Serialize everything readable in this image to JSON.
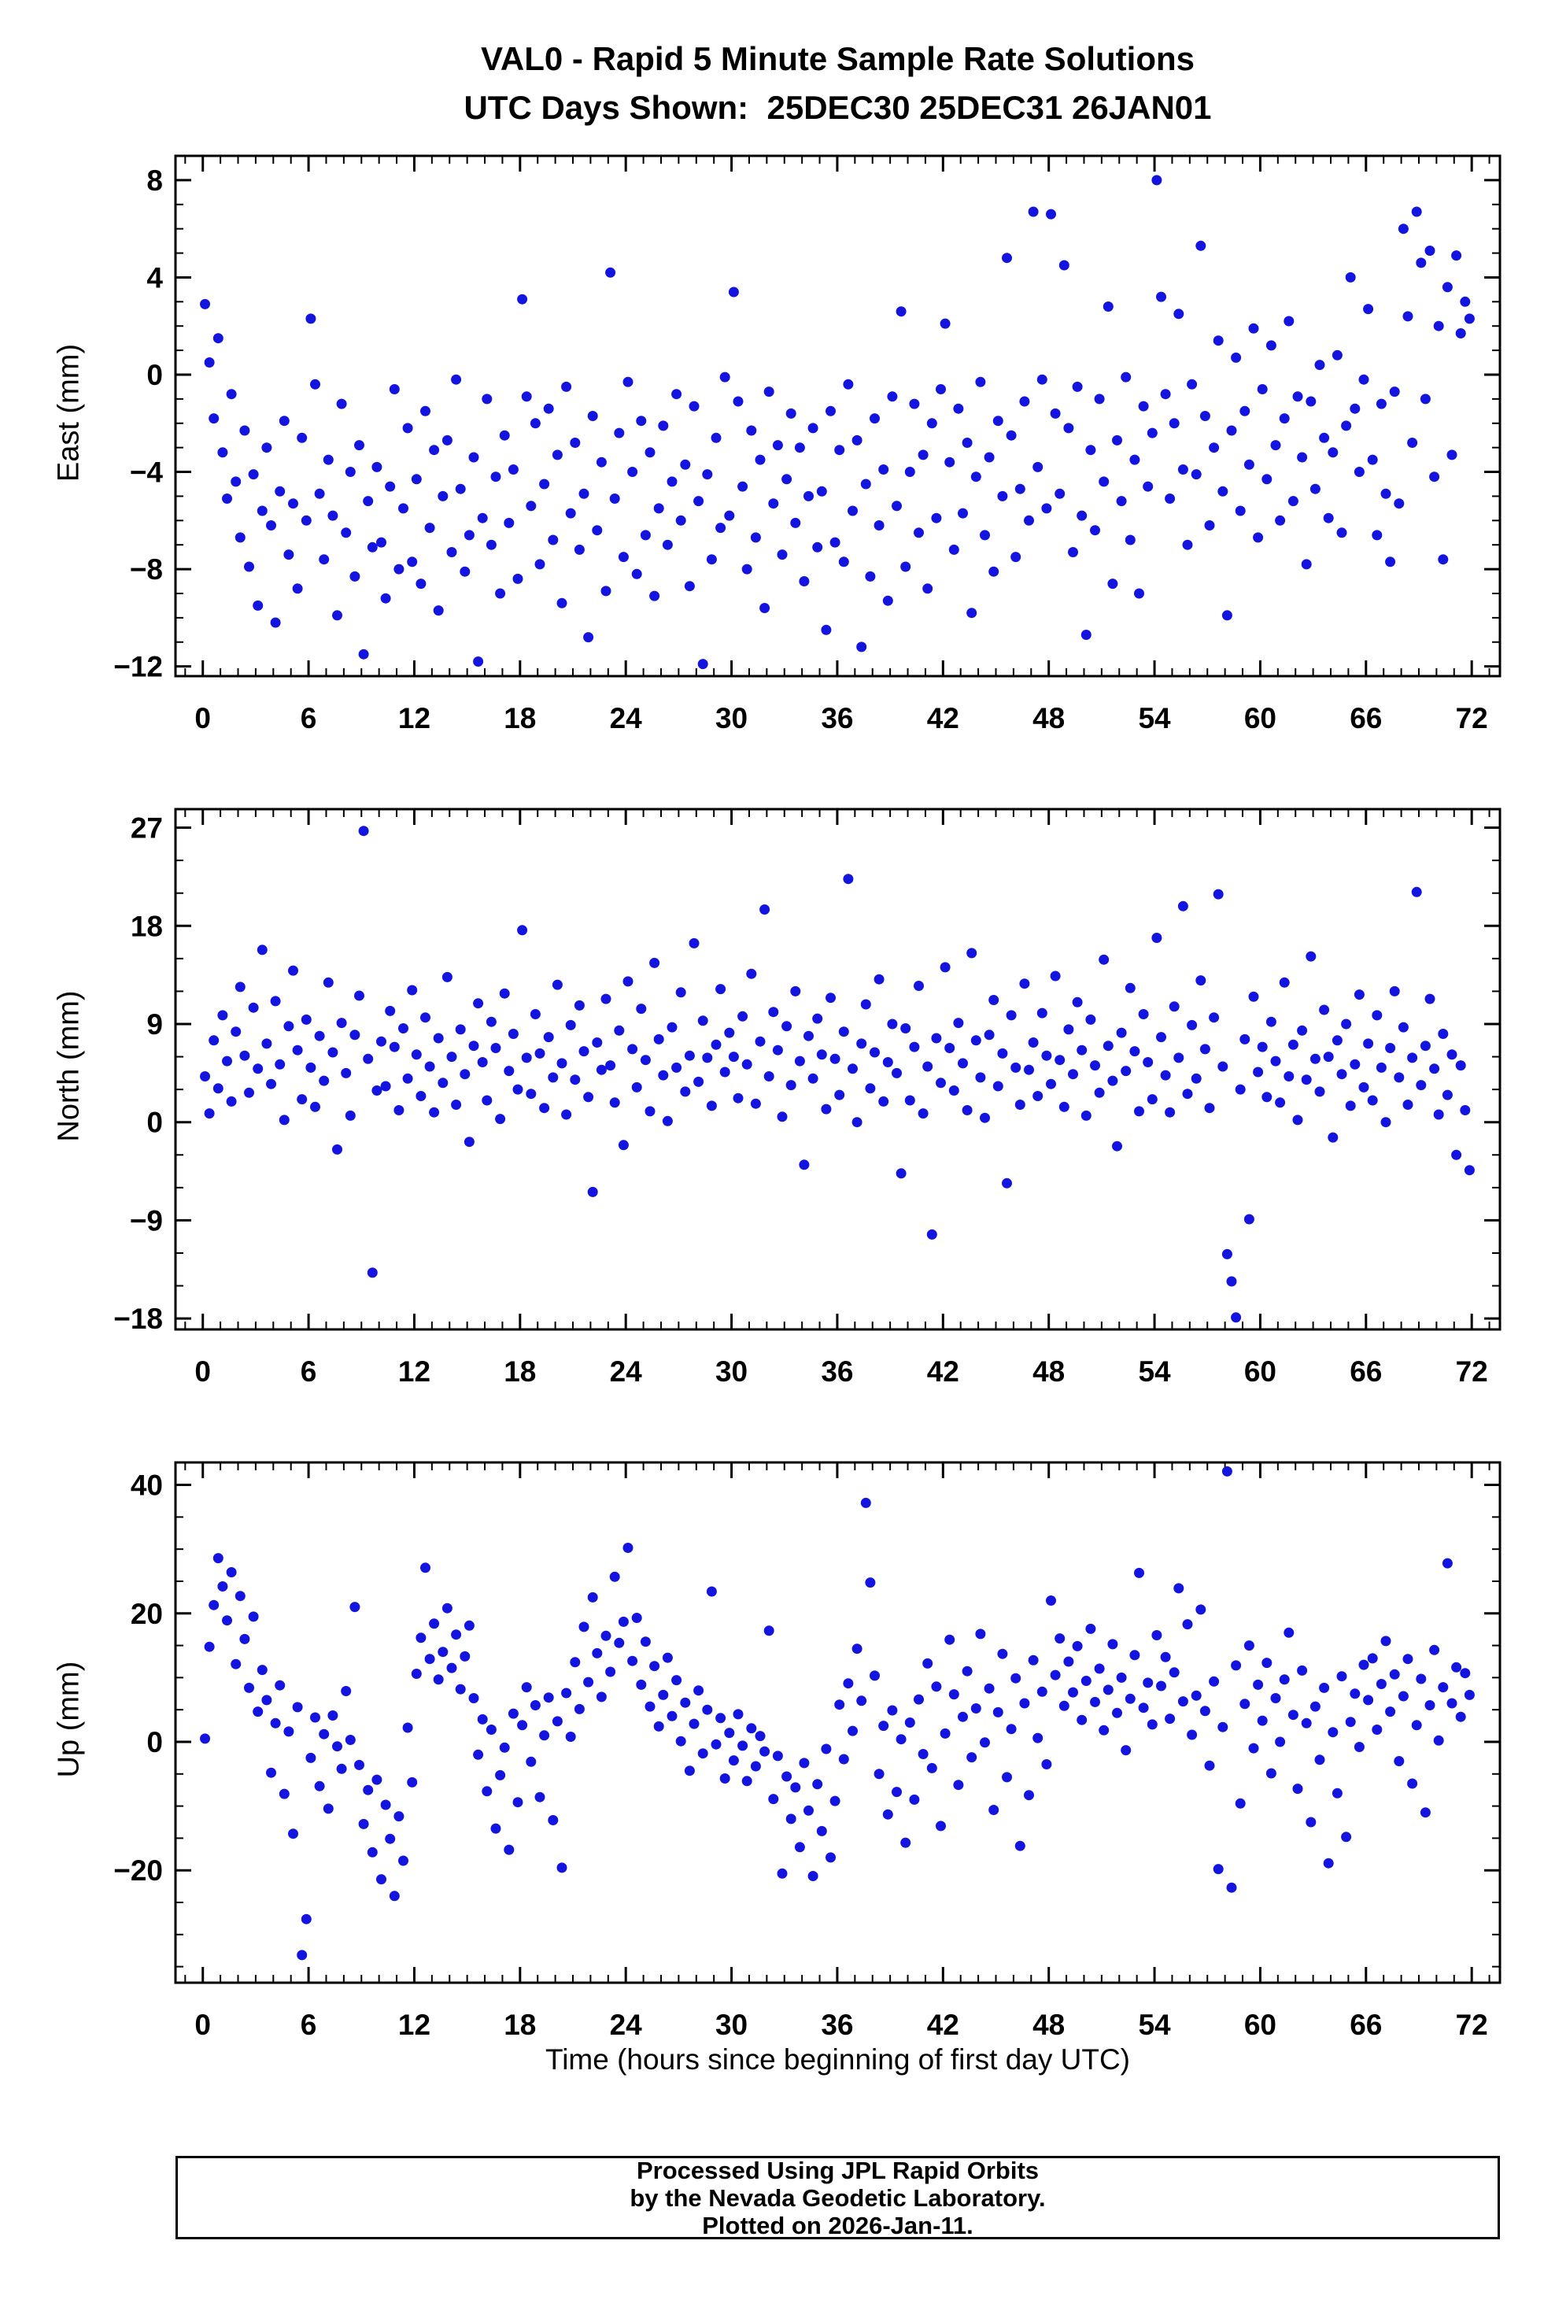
{
  "title": {
    "line1": "VAL0 - Rapid 5 Minute Sample Rate Solutions",
    "line2": "UTC Days Shown:  25DEC30 25DEC31 26JAN01"
  },
  "xlabel": "Time (hours since beginning of first day UTC)",
  "footer": {
    "line1": "Processed Using JPL Rapid Orbits",
    "line2": "by the Nevada Geodetic Laboratory.",
    "line3": "Plotted on 2026-Jan-11."
  },
  "point_color": "#1414e0",
  "chart_data": [
    {
      "type": "scatter",
      "name": "East",
      "ylabel": "East (mm)",
      "ylim": [
        -12.4,
        9.0
      ],
      "yticks": [
        8,
        4,
        0,
        -4,
        -8,
        -12
      ],
      "y_minor_step": 1,
      "xlim": [
        -1.55,
        73.6
      ],
      "xticks": [
        0,
        6,
        12,
        18,
        24,
        30,
        36,
        42,
        48,
        54,
        60,
        66,
        72
      ],
      "x_minor_step": 1,
      "x_start": 0.125,
      "x_step": 0.25,
      "y": [
        2.9,
        0.5,
        -1.8,
        1.5,
        -3.2,
        -5.1,
        -0.8,
        -4.4,
        -6.7,
        -2.3,
        -7.9,
        -4.1,
        -9.5,
        -5.6,
        -3.0,
        -6.2,
        -10.2,
        -4.8,
        -1.9,
        -7.4,
        -5.3,
        -8.8,
        -2.6,
        -6.0,
        2.3,
        -0.4,
        -4.9,
        -7.6,
        -3.5,
        -5.8,
        -9.9,
        -1.2,
        -6.5,
        -4.0,
        -8.3,
        -2.9,
        -11.5,
        -5.2,
        -7.1,
        -3.8,
        -6.9,
        -9.2,
        -4.6,
        -0.6,
        -8.0,
        -5.5,
        -2.2,
        -7.7,
        -4.3,
        -8.6,
        -1.5,
        -6.3,
        -3.1,
        -9.7,
        -5.0,
        -2.7,
        -7.3,
        -0.2,
        -4.7,
        -8.1,
        -6.6,
        -3.4,
        -11.8,
        -5.9,
        -1.0,
        -7.0,
        -4.2,
        -9.0,
        -2.5,
        -6.1,
        -3.9,
        -8.4,
        3.1,
        -0.9,
        -5.4,
        -2.0,
        -7.8,
        -4.5,
        -1.4,
        -6.8,
        -3.3,
        -9.4,
        -0.5,
        -5.7,
        -2.8,
        -7.2,
        -4.9,
        -10.8,
        -1.7,
        -6.4,
        -3.6,
        -8.9,
        4.2,
        -5.1,
        -2.4,
        -7.5,
        -0.3,
        -4.0,
        -8.2,
        -1.9,
        -6.6,
        -3.2,
        -9.1,
        -5.5,
        -2.1,
        -7.0,
        -4.4,
        -0.8,
        -6.0,
        -3.7,
        -8.7,
        -1.3,
        -5.2,
        -11.9,
        -4.1,
        -7.6,
        -2.6,
        -6.3,
        -0.1,
        -5.8,
        3.4,
        -1.1,
        -4.6,
        -8.0,
        -2.3,
        -6.7,
        -3.5,
        -9.6,
        -0.7,
        -5.3,
        -2.9,
        -7.4,
        -4.3,
        -1.6,
        -6.1,
        -3.0,
        -8.5,
        -5.0,
        -2.2,
        -7.1,
        -4.8,
        -10.5,
        -1.5,
        -6.9,
        -3.1,
        -7.7,
        -0.4,
        -5.6,
        -2.7,
        -11.2,
        -4.5,
        -8.3,
        -1.8,
        -6.2,
        -3.9,
        -9.3,
        -0.9,
        -5.4,
        2.6,
        -7.9,
        -4.0,
        -1.2,
        -6.5,
        -3.3,
        -8.8,
        -2.0,
        -5.9,
        -0.6,
        2.1,
        -3.6,
        -7.2,
        -1.4,
        -5.7,
        -2.8,
        -9.8,
        -4.2,
        -0.3,
        -6.6,
        -3.4,
        -8.1,
        -1.9,
        -5.0,
        4.8,
        -2.5,
        -7.5,
        -4.7,
        -1.1,
        -6.0,
        6.7,
        -3.8,
        -0.2,
        -5.5,
        6.6,
        -1.6,
        -4.9,
        4.5,
        -2.2,
        -7.3,
        -0.5,
        -5.8,
        -10.7,
        -3.1,
        -6.4,
        -1.0,
        -4.4,
        2.8,
        -8.6,
        -2.7,
        -5.2,
        -0.1,
        -6.8,
        -3.5,
        -9.0,
        -1.3,
        -4.6,
        -2.4,
        8.0,
        3.2,
        -0.8,
        -5.1,
        -2.0,
        2.5,
        -3.9,
        -7.0,
        -0.4,
        -4.1,
        5.3,
        -1.7,
        -6.2,
        -3.0,
        1.4,
        -4.8,
        -9.9,
        -2.3,
        0.7,
        -5.6,
        -1.5,
        -3.7,
        1.9,
        -6.7,
        -0.6,
        -4.3,
        1.2,
        -2.9,
        -6.0,
        -1.8,
        2.2,
        -5.2,
        -0.9,
        -3.4,
        -7.8,
        -1.1,
        -4.7,
        0.4,
        -2.6,
        -5.9,
        -3.2,
        0.8,
        -6.5,
        -2.1,
        4.0,
        -1.4,
        -4.0,
        -0.2,
        2.7,
        -3.5,
        -6.6,
        -1.2,
        -4.9,
        -7.7,
        -0.7,
        -5.3,
        6.0,
        2.4,
        -2.8,
        6.7,
        4.6,
        -1.0,
        5.1,
        -4.2,
        2.0,
        -7.6,
        3.6,
        -3.3,
        4.9,
        1.7,
        3.0,
        2.3
      ]
    },
    {
      "type": "scatter",
      "name": "North",
      "ylabel": "North (mm)",
      "ylim": [
        -19.0,
        28.7
      ],
      "yticks": [
        27,
        18,
        9,
        0,
        -9,
        -18
      ],
      "y_minor_step": 3,
      "xlim": [
        -1.55,
        73.6
      ],
      "xticks": [
        0,
        6,
        12,
        18,
        24,
        30,
        36,
        42,
        48,
        54,
        60,
        66,
        72
      ],
      "x_minor_step": 1,
      "x_start": 0.125,
      "x_step": 0.25,
      "y": [
        4.2,
        0.8,
        7.5,
        3.1,
        9.8,
        5.6,
        1.9,
        8.3,
        12.4,
        6.1,
        2.7,
        10.5,
        4.9,
        15.8,
        7.2,
        3.5,
        11.1,
        5.3,
        0.2,
        8.8,
        13.9,
        6.6,
        2.1,
        9.4,
        5.0,
        1.4,
        7.9,
        3.8,
        12.8,
        6.4,
        -2.5,
        9.1,
        4.5,
        0.6,
        8.0,
        11.6,
        26.7,
        5.8,
        -13.8,
        2.9,
        7.4,
        3.3,
        10.2,
        6.9,
        1.1,
        8.6,
        4.0,
        12.1,
        6.2,
        2.4,
        9.6,
        5.1,
        0.9,
        7.7,
        3.6,
        13.3,
        6.0,
        1.6,
        8.5,
        4.4,
        -1.8,
        7.0,
        10.9,
        5.5,
        2.0,
        9.2,
        6.8,
        0.3,
        11.8,
        4.7,
        8.1,
        3.0,
        17.6,
        5.9,
        2.6,
        9.9,
        6.3,
        1.3,
        7.8,
        4.1,
        12.6,
        5.4,
        0.7,
        8.9,
        3.9,
        10.7,
        6.5,
        2.3,
        -6.4,
        7.3,
        4.8,
        11.3,
        5.2,
        1.8,
        8.4,
        -2.1,
        12.9,
        6.7,
        3.2,
        10.4,
        5.7,
        1.0,
        14.6,
        7.6,
        4.3,
        0.1,
        8.7,
        5.0,
        11.9,
        2.8,
        6.1,
        16.4,
        3.7,
        9.3,
        5.9,
        1.5,
        7.1,
        12.2,
        4.6,
        8.2,
        6.0,
        2.2,
        9.7,
        5.3,
        13.6,
        1.7,
        7.4,
        19.5,
        4.2,
        10.1,
        6.6,
        0.5,
        8.8,
        3.4,
        12.0,
        5.6,
        -3.9,
        7.9,
        4.0,
        9.5,
        6.2,
        1.2,
        11.4,
        5.8,
        2.5,
        8.3,
        22.3,
        4.9,
        0.0,
        7.2,
        10.8,
        3.1,
        6.4,
        13.1,
        1.9,
        5.5,
        9.0,
        4.5,
        -4.7,
        8.6,
        2.0,
        6.9,
        12.5,
        0.8,
        5.1,
        -10.3,
        7.7,
        3.6,
        14.2,
        6.8,
        2.9,
        9.1,
        5.4,
        1.1,
        15.5,
        7.5,
        4.1,
        0.4,
        8.0,
        11.2,
        3.3,
        6.3,
        -5.6,
        9.8,
        5.0,
        1.6,
        12.7,
        4.8,
        7.3,
        2.4,
        10.0,
        6.1,
        3.5,
        13.4,
        5.7,
        1.4,
        8.5,
        4.4,
        11.0,
        6.6,
        0.6,
        9.4,
        5.2,
        2.7,
        14.9,
        7.0,
        3.8,
        -2.2,
        8.2,
        4.7,
        12.3,
        6.5,
        1.0,
        9.9,
        5.5,
        2.1,
        16.9,
        7.8,
        4.3,
        0.9,
        10.6,
        5.9,
        19.8,
        2.6,
        8.9,
        4.0,
        13.0,
        6.7,
        1.3,
        9.6,
        20.9,
        5.1,
        -12.1,
        -14.6,
        -17.9,
        3.0,
        7.6,
        -8.9,
        11.5,
        4.6,
        6.9,
        2.3,
        9.2,
        5.6,
        1.8,
        12.8,
        4.2,
        7.1,
        0.2,
        8.4,
        3.9,
        15.2,
        5.8,
        2.8,
        10.3,
        6.0,
        -1.4,
        7.5,
        4.4,
        9.0,
        1.5,
        5.3,
        11.7,
        3.2,
        7.2,
        2.0,
        9.8,
        5.0,
        0.0,
        6.8,
        12.0,
        4.1,
        8.7,
        1.6,
        5.9,
        21.1,
        3.4,
        7.0,
        11.3,
        4.9,
        0.7,
        8.1,
        2.5,
        6.2,
        -3.0,
        5.2,
        1.1,
        -4.4
      ]
    },
    {
      "type": "scatter",
      "name": "Up",
      "ylabel": "Up (mm)",
      "ylim": [
        -37.5,
        43.5
      ],
      "yticks": [
        40,
        20,
        0,
        -20
      ],
      "y_minor_step": 5,
      "xlim": [
        -1.55,
        73.6
      ],
      "xticks": [
        0,
        6,
        12,
        18,
        24,
        30,
        36,
        42,
        48,
        54,
        60,
        66,
        72
      ],
      "x_minor_step": 1,
      "x_start": 0.125,
      "x_step": 0.25,
      "y": [
        0.5,
        14.8,
        21.3,
        28.6,
        24.2,
        18.9,
        26.4,
        12.1,
        22.7,
        16.0,
        8.4,
        19.5,
        4.7,
        11.2,
        6.5,
        -4.8,
        2.9,
        8.8,
        -8.1,
        1.6,
        -14.3,
        5.4,
        -33.2,
        -27.6,
        -2.5,
        3.8,
        -6.9,
        1.2,
        -10.4,
        4.1,
        -0.7,
        -4.2,
        7.9,
        0.3,
        21.0,
        -3.6,
        -12.8,
        -7.5,
        -17.2,
        -5.9,
        -21.4,
        -9.8,
        -15.1,
        -24.0,
        -11.6,
        -18.5,
        2.2,
        -6.3,
        10.6,
        16.2,
        27.1,
        12.9,
        18.4,
        9.7,
        14.0,
        20.8,
        11.5,
        16.7,
        8.2,
        13.3,
        18.1,
        6.8,
        -2.0,
        3.5,
        -7.7,
        1.9,
        -13.5,
        -5.2,
        -0.9,
        -16.8,
        4.4,
        -9.4,
        2.6,
        8.5,
        -3.1,
        5.7,
        -8.6,
        1.0,
        6.9,
        -12.2,
        3.2,
        -19.6,
        7.6,
        0.8,
        12.4,
        5.1,
        17.9,
        9.3,
        22.5,
        13.8,
        7.0,
        16.5,
        10.9,
        25.7,
        15.4,
        18.7,
        30.2,
        12.6,
        19.3,
        8.9,
        15.6,
        5.5,
        11.8,
        2.4,
        7.3,
        13.1,
        4.0,
        9.6,
        0.1,
        6.1,
        -4.5,
        2.8,
        8.0,
        -1.8,
        5.0,
        23.4,
        -0.4,
        3.7,
        -5.7,
        1.4,
        -2.9,
        4.3,
        -0.6,
        -6.1,
        2.1,
        -3.8,
        0.9,
        -1.5,
        17.3,
        -8.9,
        -2.2,
        -20.5,
        -5.4,
        -12.0,
        -7.1,
        -16.4,
        -3.3,
        -10.7,
        -20.9,
        -6.6,
        -13.9,
        -1.1,
        -18.0,
        -9.2,
        5.8,
        -2.7,
        9.1,
        1.7,
        14.5,
        6.4,
        37.2,
        24.8,
        10.3,
        -5.0,
        2.5,
        -11.3,
        4.9,
        -7.8,
        0.4,
        -15.7,
        3.0,
        -9.0,
        6.6,
        -1.9,
        12.2,
        -4.1,
        8.6,
        -13.1,
        1.3,
        15.9,
        7.4,
        -6.7,
        3.9,
        11.0,
        -2.4,
        5.2,
        16.8,
        -0.1,
        8.3,
        -10.6,
        4.6,
        13.7,
        -5.5,
        2.0,
        9.9,
        -16.2,
        6.0,
        -8.3,
        12.7,
        0.6,
        7.8,
        -3.5,
        22.0,
        10.4,
        16.1,
        5.6,
        12.5,
        7.7,
        14.9,
        3.4,
        9.5,
        17.6,
        6.2,
        11.4,
        1.8,
        8.1,
        15.2,
        4.5,
        10.0,
        -1.3,
        6.7,
        13.5,
        26.3,
        5.3,
        9.2,
        2.7,
        16.6,
        8.7,
        13.2,
        3.6,
        10.8,
        23.9,
        6.3,
        18.3,
        1.1,
        7.2,
        20.6,
        4.8,
        -3.7,
        9.4,
        -19.8,
        2.3,
        42.1,
        -22.7,
        11.9,
        -9.6,
        5.9,
        15.0,
        -1.0,
        8.9,
        3.3,
        12.3,
        -4.9,
        6.8,
        0.0,
        9.7,
        17.0,
        4.2,
        -7.3,
        11.1,
        2.9,
        -12.5,
        5.5,
        -2.8,
        8.4,
        -18.9,
        1.5,
        -8.0,
        10.2,
        -14.8,
        3.1,
        7.5,
        -0.8,
        12.0,
        6.5,
        13.0,
        1.9,
        9.0,
        15.7,
        4.7,
        10.5,
        -3.0,
        7.1,
        12.9,
        -6.5,
        2.6,
        9.8,
        -11.0,
        5.7,
        14.3,
        0.2,
        8.5,
        27.8,
        6.0,
        11.6,
        3.9,
        10.7,
        7.3
      ]
    }
  ]
}
